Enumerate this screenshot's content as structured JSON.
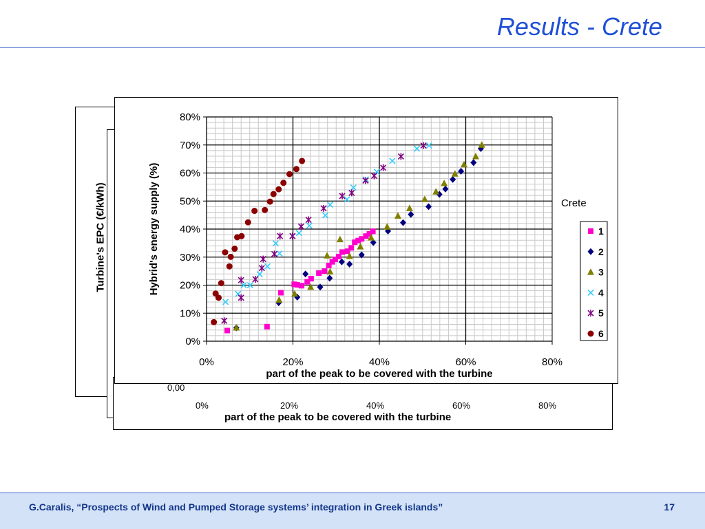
{
  "slide": {
    "title": "Results - Crete",
    "footer_text": "G.Caralis, “Prospects of Wind and Pumped Storage systems’ integration in Greek islands”",
    "page_number": "17"
  },
  "background_chart": {
    "ylabel": "Turbine's EPC (€/kWh)",
    "y_tick_visible": "0,00",
    "x_ticks": [
      "0%",
      "20%",
      "40%",
      "60%",
      "80%"
    ],
    "xlabel": "part of the peak to be covered with the turbine"
  },
  "colors": {
    "title": "#1f4fd6",
    "footer_bg": "#d3e2f7",
    "footer_text": "#13368a",
    "series": [
      "#ff00cc",
      "#000080",
      "#808000",
      "#33ccff",
      "#800080",
      "#8b0000"
    ]
  },
  "chart_data": {
    "type": "scatter",
    "title": "",
    "xlabel": "part of the peak to be covered with the turbine",
    "ylabel": "Hybrid's energy supply (%)",
    "xlim": [
      0,
      80
    ],
    "ylim": [
      0,
      80
    ],
    "x_ticks": [
      "0%",
      "20%",
      "40%",
      "60%",
      "80%"
    ],
    "y_ticks": [
      "0%",
      "10%",
      "20%",
      "30%",
      "40%",
      "50%",
      "60%",
      "70%",
      "80%"
    ],
    "grid": true,
    "legend_title": "Crete",
    "legend_position": "right",
    "series": [
      {
        "name": "1",
        "marker": "square",
        "x": [
          4.8,
          14,
          17.2,
          20.3,
          21,
          22,
          23.3,
          24.2,
          26,
          27.3,
          28.3,
          29.1,
          29.8,
          30.6,
          31.4,
          32.6,
          33.5,
          34.3,
          35.1,
          35.9,
          36.9,
          37.7,
          38.5
        ],
        "y": [
          3.8,
          5.2,
          17.3,
          20.3,
          20.1,
          19.8,
          21.2,
          22.3,
          24.3,
          25,
          27,
          28.3,
          29.2,
          30.2,
          31.8,
          32.1,
          33.3,
          35.3,
          35.9,
          36.5,
          37.5,
          38.3,
          39.2
        ]
      },
      {
        "name": "2",
        "marker": "diamond",
        "x": [
          6.9,
          16.7,
          21,
          22.9,
          26.3,
          28.5,
          31.3,
          33.1,
          35.9,
          38.6,
          42,
          45.5,
          47.3,
          51.4,
          53.9,
          55.3,
          57,
          58.9,
          61.8,
          63.5
        ],
        "y": [
          4.8,
          13.7,
          15.7,
          24,
          19.3,
          22.5,
          28.3,
          27.5,
          30.8,
          35.2,
          39.3,
          42.3,
          45.2,
          48,
          52.4,
          54.3,
          57.7,
          60.6,
          63.7,
          68.7
        ]
      },
      {
        "name": "3",
        "marker": "triangle",
        "x": [
          6.9,
          16.8,
          20.4,
          24.1,
          27.9,
          28.6,
          30.9,
          33.1,
          35.6,
          38.1,
          41.8,
          44.3,
          47,
          50.5,
          53.1,
          55,
          57.5,
          59.6,
          62.3,
          63.7
        ],
        "y": [
          4.8,
          14.7,
          16.9,
          19.3,
          30.5,
          24.8,
          36.3,
          30.3,
          33.7,
          36.9,
          40.8,
          44.7,
          47.4,
          50.6,
          53.3,
          56.3,
          59.7,
          63,
          65.9,
          70
        ]
      },
      {
        "name": "4",
        "marker": "x",
        "x": [
          4.4,
          7.3,
          8.6,
          10.1,
          12.3,
          14.1,
          16,
          16.9,
          19.9,
          21.4,
          23.8,
          27.5,
          28.6,
          32.5,
          34,
          36.9,
          39.4,
          43,
          48.7,
          51.5
        ],
        "y": [
          14,
          16.9,
          20,
          20,
          23.9,
          26.7,
          34.9,
          31.3,
          37.5,
          38.6,
          41.2,
          44.9,
          48.7,
          50.6,
          54.8,
          57.7,
          60.4,
          64.3,
          68.7,
          69.8
        ]
      },
      {
        "name": "5",
        "marker": "star",
        "x": [
          4.1,
          8,
          8,
          11.3,
          12.8,
          13.1,
          15.7,
          17,
          19.9,
          21.9,
          23.6,
          27.1,
          31.4,
          33.6,
          36.8,
          38.8,
          40.9,
          45,
          50.2
        ],
        "y": [
          7.3,
          15.5,
          21.8,
          22.1,
          26.1,
          29.3,
          31.1,
          37.5,
          37.5,
          40.9,
          43.3,
          47.4,
          51.8,
          52.9,
          57.3,
          59,
          61.9,
          65.9,
          69.8
        ]
      },
      {
        "name": "6",
        "marker": "circle",
        "x": [
          1.7,
          2.1,
          2.8,
          3.4,
          4.3,
          5.3,
          5.6,
          6.5,
          7.1,
          8.1,
          9.6,
          11.1,
          13.5,
          14.7,
          15.5,
          16.7,
          17.8,
          19.2,
          20.8,
          22.1
        ],
        "y": [
          6.8,
          17,
          15.5,
          20.7,
          31.7,
          26.7,
          30.1,
          33,
          37.1,
          37.5,
          42.4,
          46.5,
          46.8,
          49.8,
          52.5,
          54.2,
          56.5,
          59.6,
          61.4,
          64.3
        ]
      }
    ]
  }
}
